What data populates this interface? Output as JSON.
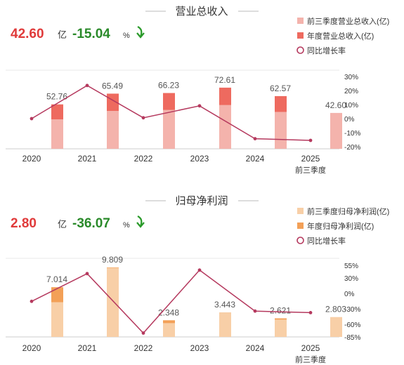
{
  "chart_data": [
    {
      "type": "bar",
      "title": "营业总收入",
      "headline": {
        "value": "42.60",
        "unit": "亿",
        "change": "-15.04",
        "change_unit": "%",
        "arrow": "down-arrow-icon"
      },
      "categories": [
        "2020",
        "2021",
        "2022",
        "2023",
        "2024",
        "2025"
      ],
      "category_sub": [
        "",
        "",
        "",
        "",
        "",
        "前三季度"
      ],
      "series": [
        {
          "name": "前三季度营业总收入(亿)",
          "type": "bar",
          "color": "#f4b3ac",
          "values": [
            35.0,
            45.0,
            46.2,
            52.0,
            43.8,
            42.6
          ]
        },
        {
          "name": "年度营业总收入(亿)",
          "type": "bar",
          "color": "#ee6a5f",
          "values": [
            52.76,
            65.49,
            66.23,
            72.61,
            62.57,
            null
          ]
        },
        {
          "name": "同比增长率",
          "type": "line",
          "color": "#b5395e",
          "axis": "right",
          "values": [
            0.5,
            24.1,
            1.1,
            9.6,
            -13.8,
            -15.0
          ]
        }
      ],
      "data_labels": [
        "52.76",
        "65.49",
        "66.23",
        "72.61",
        "62.57",
        "42.60"
      ],
      "ylim": [
        0,
        100
      ],
      "y2_ticks": [
        "30%",
        "20%",
        "10%",
        "0%",
        "-10%",
        "-20%"
      ],
      "y2_values": [
        30,
        20,
        10,
        0,
        -10,
        -20
      ]
    },
    {
      "type": "bar",
      "title": "归母净利润",
      "headline": {
        "value": "2.80",
        "unit": "亿",
        "change": "-36.07",
        "change_unit": "%",
        "arrow": "down-arrow-icon"
      },
      "categories": [
        "2020",
        "2021",
        "2022",
        "2023",
        "2024",
        "2025"
      ],
      "category_sub": [
        "",
        "",
        "",
        "",
        "",
        "前三季度"
      ],
      "series": [
        {
          "name": "前三季度归母净利润(亿)",
          "type": "bar",
          "color": "#f8cfa7",
          "values": [
            4.9,
            9.75,
            1.95,
            3.443,
            2.45,
            2.803
          ]
        },
        {
          "name": "年度归母净利润(亿)",
          "type": "bar",
          "color": "#f3a057",
          "values": [
            7.014,
            9.809,
            2.348,
            3.443,
            2.621,
            null
          ]
        },
        {
          "name": "同比增长率",
          "type": "line",
          "color": "#b5395e",
          "axis": "right",
          "values": [
            -14,
            40,
            -76,
            47,
            -33,
            -36
          ]
        }
      ],
      "data_labels": [
        "7.014",
        "9.809",
        "2.348",
        "3.443",
        "2.621",
        "2.803"
      ],
      "ylim": [
        0,
        18
      ],
      "y2_ticks": [
        "55%",
        "30%",
        "0%",
        "-30%",
        "-60%",
        "-85%"
      ],
      "y2_values": [
        55,
        30,
        0,
        -30,
        -60,
        -85
      ]
    }
  ]
}
